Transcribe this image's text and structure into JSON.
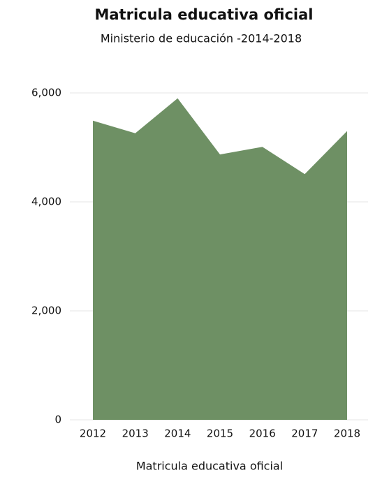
{
  "chart_data": {
    "type": "area",
    "title": "Matricula educativa oficial",
    "subtitle": "Ministerio de educación -2014-2018",
    "x_label": "Matricula educativa oficial",
    "x": [
      2012,
      2013,
      2014,
      2015,
      2016,
      2017,
      2018
    ],
    "values": [
      5490,
      5260,
      5900,
      4870,
      5010,
      4510,
      5300
    ],
    "color": "#6e9064",
    "xlim": [
      2012,
      2018
    ],
    "ylim": [
      0,
      6000
    ],
    "yticks": [
      0,
      {
        "value": 2000,
        "label": "2,000"
      },
      {
        "value": 4000,
        "label": "4,000"
      },
      {
        "value": 6000,
        "label": "6,000"
      }
    ],
    "grid": true
  }
}
